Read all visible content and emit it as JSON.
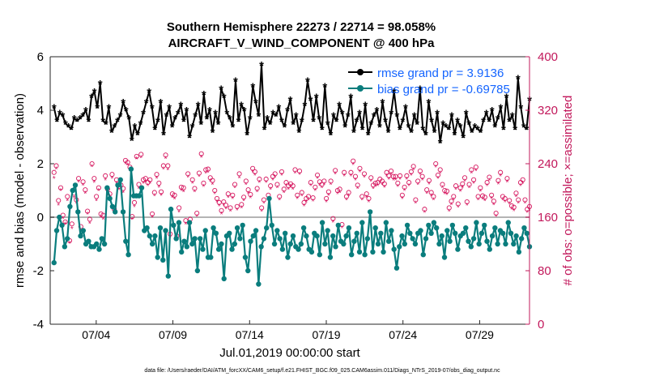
{
  "chart_data": {
    "type": "line",
    "title_line1": "Southern Hemisphere 22273 / 22714 = 98.058%",
    "title_line2": "AIRCRAFT_V_WIND_COMPONENT @ 400 hPa",
    "xlabel": "Jul.01,2019 00:00:00 start",
    "ylabel": "rmse and bias (model - observation)",
    "y2label": "# of obs: o=possible; ×=assimilated",
    "footer": "data file: /Users/raeder/DAI/ATM_forcXX/CAM6_setup/f.e21.FHIST_BGC.f09_025.CAM6assim.011/Diags_NTrS_2019-07/obs_diag_output.nc",
    "ylim": [
      -4,
      6
    ],
    "yticks": [
      "-4",
      "-2",
      "0",
      "2",
      "4",
      "6"
    ],
    "y2lim": [
      0,
      400
    ],
    "y2ticks": [
      "0",
      "80",
      "160",
      "240",
      "320",
      "400"
    ],
    "xlim": [
      1.0,
      32.25
    ],
    "xticks": [
      {
        "label": "07/04",
        "x": 4
      },
      {
        "label": "07/09",
        "x": 9
      },
      {
        "label": "07/14",
        "x": 14
      },
      {
        "label": "07/19",
        "x": 19
      },
      {
        "label": "07/24",
        "x": 24
      },
      {
        "label": "07/29",
        "x": 29
      }
    ],
    "legend": [
      {
        "label": "rmse grand pr = 3.9136",
        "color": "#000000",
        "key": "rmse"
      },
      {
        "label": "bias grand pr = -0.69785",
        "color": "#0a7d7d",
        "key": "bias"
      }
    ],
    "colors": {
      "rmse": "#000000",
      "bias": "#0a7d7d",
      "obs": "#d6175f",
      "zero_line": "#b4b4b4"
    },
    "series": [
      {
        "name": "rmse",
        "values": [
          4.1,
          3.6,
          3.9,
          3.8,
          3.5,
          3.4,
          3.3,
          3.7,
          3.6,
          3.7,
          3.8,
          4.0,
          3.6,
          4.5,
          4.7,
          4.1,
          5.0,
          3.6,
          3.5,
          4.1,
          3.2,
          3.4,
          3.6,
          3.8,
          4.3,
          4.0,
          3.7,
          2.9,
          3.4,
          3.1,
          3.5,
          3.9,
          4.3,
          4.7,
          4.1,
          3.3,
          3.6,
          4.3,
          3.1,
          3.8,
          4.1,
          3.4,
          3.7,
          3.9,
          4.2,
          3.6,
          4.0,
          3.0,
          3.4,
          3.8,
          4.2,
          3.5,
          4.6,
          3.7,
          4.0,
          3.2,
          3.9,
          3.5,
          4.8,
          4.5,
          3.9,
          3.7,
          3.4,
          5.1,
          3.6,
          4.2,
          4.0,
          3.1,
          3.7,
          4.9,
          4.3,
          3.8,
          5.7,
          3.3,
          3.7,
          3.5,
          3.9,
          3.8,
          4.1,
          3.6,
          3.4,
          4.0,
          4.4,
          3.5,
          3.8,
          3.2,
          3.6,
          4.2,
          5.1,
          4.4,
          3.6,
          4.5,
          3.7,
          3.3,
          4.9,
          3.5,
          3.1,
          3.8,
          3.6,
          4.2,
          3.9,
          3.4,
          3.8,
          4.5,
          3.2,
          3.6,
          3.9,
          3.3,
          4.2,
          3.1,
          3.5,
          3.8,
          4.0,
          3.4,
          4.3,
          3.6,
          3.2,
          3.9,
          4.7,
          3.8,
          3.3,
          3.6,
          4.1,
          3.4,
          3.2,
          3.8,
          3.5,
          4.8,
          3.3,
          3.1,
          4.3,
          3.6,
          3.2,
          3.9,
          2.8,
          3.5,
          3.4,
          3.3,
          3.8,
          3.1,
          3.6,
          3.4,
          3.0,
          3.9,
          3.5,
          3.2,
          3.4,
          3.3,
          3.2,
          3.6,
          3.9,
          3.6,
          4.0,
          3.4,
          3.7,
          4.1,
          3.3,
          4.5,
          3.6,
          3.8,
          3.3,
          5.2,
          4.1,
          3.4,
          3.3,
          4.4
        ]
      },
      {
        "name": "bias",
        "values": [
          -1.7,
          -0.5,
          0.0,
          -0.3,
          -1.1,
          -0.8,
          0.4,
          1.0,
          1.2,
          0.2,
          -0.7,
          -0.5,
          -1.0,
          -0.9,
          -1.1,
          -1.1,
          -1.0,
          -1.2,
          -0.8,
          -1.0,
          1.1,
          0.7,
          0.4,
          0.2,
          1.2,
          1.4,
          0.2,
          -0.9,
          -1.4,
          1.8,
          0.8,
          0.8,
          0.8,
          1.1,
          -0.5,
          -0.4,
          -0.7,
          -1.0,
          -0.7,
          -1.5,
          -0.4,
          -1.6,
          -0.5,
          -2.2,
          0.3,
          -0.3,
          -0.8,
          -0.2,
          -1.3,
          -0.9,
          -1.1,
          -0.2,
          -1.0,
          -0.8,
          -2.0,
          -0.8,
          -1.2,
          -0.5,
          -1.5,
          -1.5,
          -0.4,
          -0.6,
          -1.2,
          -1.0,
          -2.3,
          -0.7,
          -0.6,
          -1.2,
          -1.0,
          -0.4,
          -0.8,
          -0.3,
          -1.5,
          -2.0,
          -0.9,
          -0.7,
          -0.5,
          -2.5,
          -1.1,
          -0.8,
          -0.4,
          0.7,
          -0.3,
          -1.0,
          -0.5,
          -0.8,
          -1.2,
          -0.6,
          -1.5,
          -1.0,
          -0.7,
          -1.1,
          -1.2,
          -1.0,
          -0.4,
          -0.7,
          -1.2,
          -1.3,
          -0.6,
          -0.7,
          -1.4,
          -0.2,
          -1.0,
          -0.5,
          -1.5,
          -0.7,
          -1.1,
          -0.3,
          -0.9,
          -1.0,
          -0.7,
          -0.4,
          -1.4,
          -0.9,
          -0.6,
          -1.3,
          -0.2,
          -1.4,
          -0.8,
          0.2,
          -1.3,
          -0.4,
          -1.0,
          -0.6,
          -1.3,
          -0.2,
          -0.9,
          -0.5,
          -1.2,
          -1.9,
          -1.1,
          -0.7,
          -1.0,
          -0.3,
          -0.6,
          -0.8,
          -1.0,
          -0.6,
          -0.5,
          -1.4,
          -0.8,
          -0.3,
          -0.6,
          -0.2,
          -0.4,
          -1.0,
          -0.7,
          -1.5,
          -0.5,
          -0.9,
          -0.3,
          -0.6,
          -1.2,
          -0.7,
          -0.6,
          -0.4,
          -0.9,
          -1.1,
          -0.8,
          -0.2,
          -1.0,
          -0.6,
          -0.3,
          -0.9,
          -1.2,
          -0.7,
          -0.4,
          -1.0,
          -0.5,
          -0.6,
          -1.0,
          -0.2,
          -0.6,
          -1.0,
          -0.7,
          -1.3,
          -0.8,
          -0.4,
          -0.6,
          -1.1
        ]
      },
      {
        "name": "obs_possible",
        "values": [
          227,
          237,
          185,
          204,
          163,
          153,
          191,
          125,
          150,
          196,
          186,
          218,
          146,
          213,
          201,
          169,
          157,
          240,
          218,
          191,
          204,
          165,
          163,
          222,
          202,
          195,
          224,
          172,
          216,
          206,
          208,
          203,
          245,
          242,
          235,
          161,
          182,
          251,
          209,
          254,
          216,
          218,
          212,
          216,
          165,
          197,
          224,
          211,
          198,
          237,
          253,
          237,
          135,
          195,
          193,
          132,
          174,
          205,
          204,
          155,
          225,
          157,
          216,
          203,
          166,
          226,
          255,
          211,
          231,
          232,
          219,
          215,
          200,
          188,
          182,
          170,
          183,
          178,
          195,
          174,
          193,
          209,
          176,
          225,
          179,
          190,
          214,
          201,
          194,
          233,
          228,
          203,
          217,
          174,
          186,
          217,
          193,
          207,
          221,
          225,
          209,
          191,
          228,
          202,
          212,
          207,
          210,
          207,
          231,
          193,
          229,
          197,
          182,
          188,
          191,
          212,
          189,
          205,
          223,
          213,
          209,
          214,
          188,
          198,
          214,
          158,
          230,
          200,
          202,
          149,
          227,
          191,
          197,
          227,
          244,
          221,
          208,
          233,
          191,
          225,
          195,
          188,
          219,
          208,
          211,
          212,
          217,
          214,
          210,
          227,
          222,
          229,
          221,
          221,
          211,
          222,
          193,
          205,
          222,
          212,
          228,
          236,
          186,
          214,
          229,
          221,
          172,
          201,
          215,
          197,
          191,
          240,
          223,
          231,
          209,
          200,
          199,
          174,
          184,
          191,
          207,
          180,
          204,
          210,
          219,
          183,
          209,
          231,
          216,
          235,
          191,
          204,
          192,
          190,
          212,
          220,
          193,
          184,
          166,
          215,
          227,
          191,
          188,
          218,
          185,
          177,
          175,
          196,
          186,
          212,
          216,
          186,
          172,
          176
        ]
      },
      {
        "name": "obs_assimilated",
        "values": [
          218,
          232,
          178,
          200,
          158,
          150,
          185,
          121,
          143,
          189,
          181,
          213,
          140,
          208,
          196,
          165,
          151,
          236,
          212,
          185,
          200,
          160,
          157,
          216,
          197,
          191,
          218,
          168,
          211,
          201,
          202,
          197,
          240,
          238,
          230,
          157,
          176,
          247,
          203,
          249,
          211,
          213,
          207,
          211,
          160,
          192,
          218,
          205,
          193,
          232,
          248,
          231,
          130,
          190,
          187,
          128,
          168,
          200,
          198,
          150,
          220,
          152,
          211,
          198,
          161,
          221,
          250,
          206,
          226,
          227,
          214,
          209,
          195,
          183,
          177,
          165,
          178,
          173,
          190,
          169,
          188,
          204,
          171,
          219,
          174,
          185,
          209,
          196,
          189,
          228,
          223,
          198,
          212,
          169,
          181,
          212,
          188,
          202,
          216,
          220,
          204,
          186,
          223,
          197,
          207,
          202,
          205,
          202,
          226,
          188,
          224,
          192,
          177,
          183,
          186,
          207,
          184,
          200,
          218,
          208,
          204,
          209,
          183,
          193,
          209,
          153,
          225,
          195,
          197,
          144,
          222,
          186,
          192,
          222,
          239,
          216,
          203,
          228,
          186,
          220,
          190,
          183,
          214,
          203,
          206,
          207,
          212,
          209,
          205,
          222,
          217,
          224,
          216,
          216,
          206,
          217,
          188,
          200,
          217,
          207,
          223,
          231,
          181,
          209,
          224,
          216,
          167,
          196,
          210,
          192,
          186,
          235,
          218,
          226,
          204,
          195,
          194,
          169,
          179,
          186,
          202,
          175,
          199,
          205,
          214,
          178,
          204,
          226,
          211,
          230,
          186,
          199,
          187,
          185,
          207,
          215,
          188,
          179,
          161,
          210,
          222,
          186,
          183,
          213,
          180,
          172,
          170,
          191,
          181,
          207,
          211,
          181,
          167,
          171
        ]
      }
    ]
  }
}
